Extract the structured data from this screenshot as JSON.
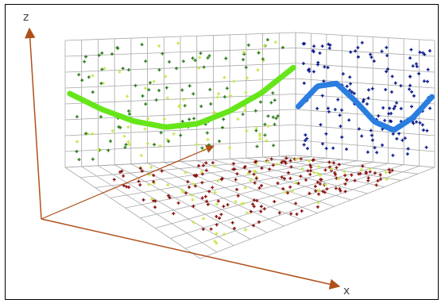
{
  "chart_data": {
    "type": "scatter",
    "title": "",
    "axes": {
      "x": "x",
      "y": "",
      "z": "z"
    },
    "grid": true,
    "colors": {
      "left_wall_points": "#2e7d1e",
      "left_wall_points_light": "#c6e84a",
      "right_wall_points": "#0a1a8a",
      "floor_points": "#8b1010",
      "green_curve": "#66e61a",
      "blue_curve": "#2a7ee0",
      "axes": "#b0501a"
    },
    "series": [
      {
        "wall": "left",
        "curve": "green",
        "values": [
          1.0,
          0.55,
          0.2,
          0.0,
          0.05,
          0.35,
          0.8,
          1.45
        ]
      },
      {
        "wall": "right",
        "curve": "blue",
        "values": [
          0.0,
          0.8,
          0.95,
          0.35,
          -0.35,
          -0.6,
          -0.1,
          0.7
        ]
      }
    ],
    "point_clouds": [
      "left-wall",
      "right-wall",
      "floor"
    ]
  }
}
